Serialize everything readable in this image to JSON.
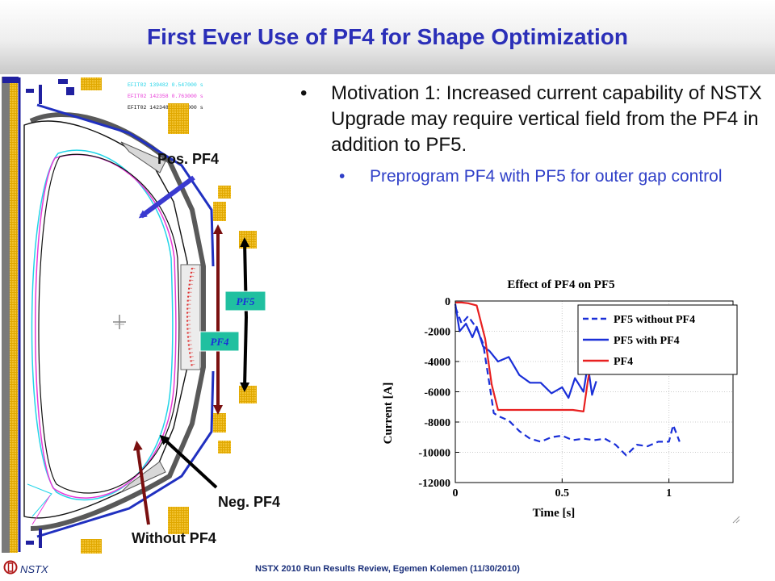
{
  "title": "First Ever Use of PF4 for Shape Optimization",
  "bullet1": "Motivation 1: Increased current capability of NSTX Upgrade may require vertical field from the PF4 in addition to PF5.",
  "bullet2": "Preprogram PF4 with PF5 for outer gap control",
  "diagram": {
    "legend": [
      "EFIT02  139482  0.547000  s",
      "EFIT02  142358  0.763000  s",
      "EFIT02  142348  0.765000  s"
    ],
    "legend_colors": [
      "#22d4e8",
      "#e83ad8",
      "#111111"
    ],
    "labels": {
      "pos": "Pos. PF4",
      "neg": "Neg. PF4",
      "without": "Without PF4",
      "pf5": "PF5",
      "pf4": "PF4"
    }
  },
  "chart_data": {
    "type": "line",
    "title": "Effect of PF4 on PF5",
    "xlabel": "Time [s]",
    "ylabel": "Current [A]",
    "xlim": [
      0,
      1.3
    ],
    "ylim": [
      -12000,
      0
    ],
    "xticks": [
      "0",
      "0.5",
      "1"
    ],
    "yticks": [
      "0",
      "-2000",
      "-4000",
      "-6000",
      "-8000",
      "-10000",
      "-12000"
    ],
    "grid": true,
    "legend_position": "top-right",
    "series": [
      {
        "name": "PF5 without PF4",
        "color": "#1a2fd8",
        "style": "dashed",
        "x": [
          0,
          0.03,
          0.06,
          0.1,
          0.13,
          0.16,
          0.18,
          0.2,
          0.25,
          0.3,
          0.35,
          0.4,
          0.45,
          0.5,
          0.55,
          0.6,
          0.65,
          0.7,
          0.75,
          0.8,
          0.85,
          0.9,
          0.95,
          1.0,
          1.02,
          1.05
        ],
        "y": [
          -400,
          -1500,
          -1000,
          -1800,
          -2800,
          -5500,
          -7400,
          -7600,
          -7900,
          -8600,
          -9100,
          -9300,
          -9000,
          -8900,
          -9200,
          -9100,
          -9200,
          -9100,
          -9500,
          -10200,
          -9500,
          -9600,
          -9300,
          -9300,
          -8200,
          -9300
        ]
      },
      {
        "name": "PF5 with PF4",
        "color": "#1a2fd8",
        "style": "solid",
        "x": [
          0,
          0.02,
          0.05,
          0.08,
          0.1,
          0.13,
          0.16,
          0.2,
          0.25,
          0.3,
          0.35,
          0.4,
          0.45,
          0.5,
          0.53,
          0.56,
          0.6,
          0.62,
          0.64,
          0.66
        ],
        "y": [
          -200,
          -2000,
          -1500,
          -2400,
          -1700,
          -3000,
          -3300,
          -4000,
          -3700,
          -4900,
          -5400,
          -5400,
          -6100,
          -5700,
          -6400,
          -5100,
          -6000,
          -4200,
          -6200,
          -5300
        ]
      },
      {
        "name": "PF4",
        "color": "#e82020",
        "style": "solid",
        "x": [
          0,
          0.03,
          0.06,
          0.1,
          0.14,
          0.17,
          0.2,
          0.3,
          0.4,
          0.5,
          0.55,
          0.6,
          0.62,
          0.64,
          0.65
        ],
        "y": [
          -100,
          -100,
          -150,
          -300,
          -2500,
          -5500,
          -7200,
          -7200,
          -7200,
          -7200,
          -7200,
          -7300,
          -5300,
          -3700,
          -3700
        ]
      }
    ]
  },
  "footer": {
    "logo": "NSTX",
    "text": "NSTX 2010 Run Results Review,  Egemen Kolemen (11/30/2010)"
  }
}
